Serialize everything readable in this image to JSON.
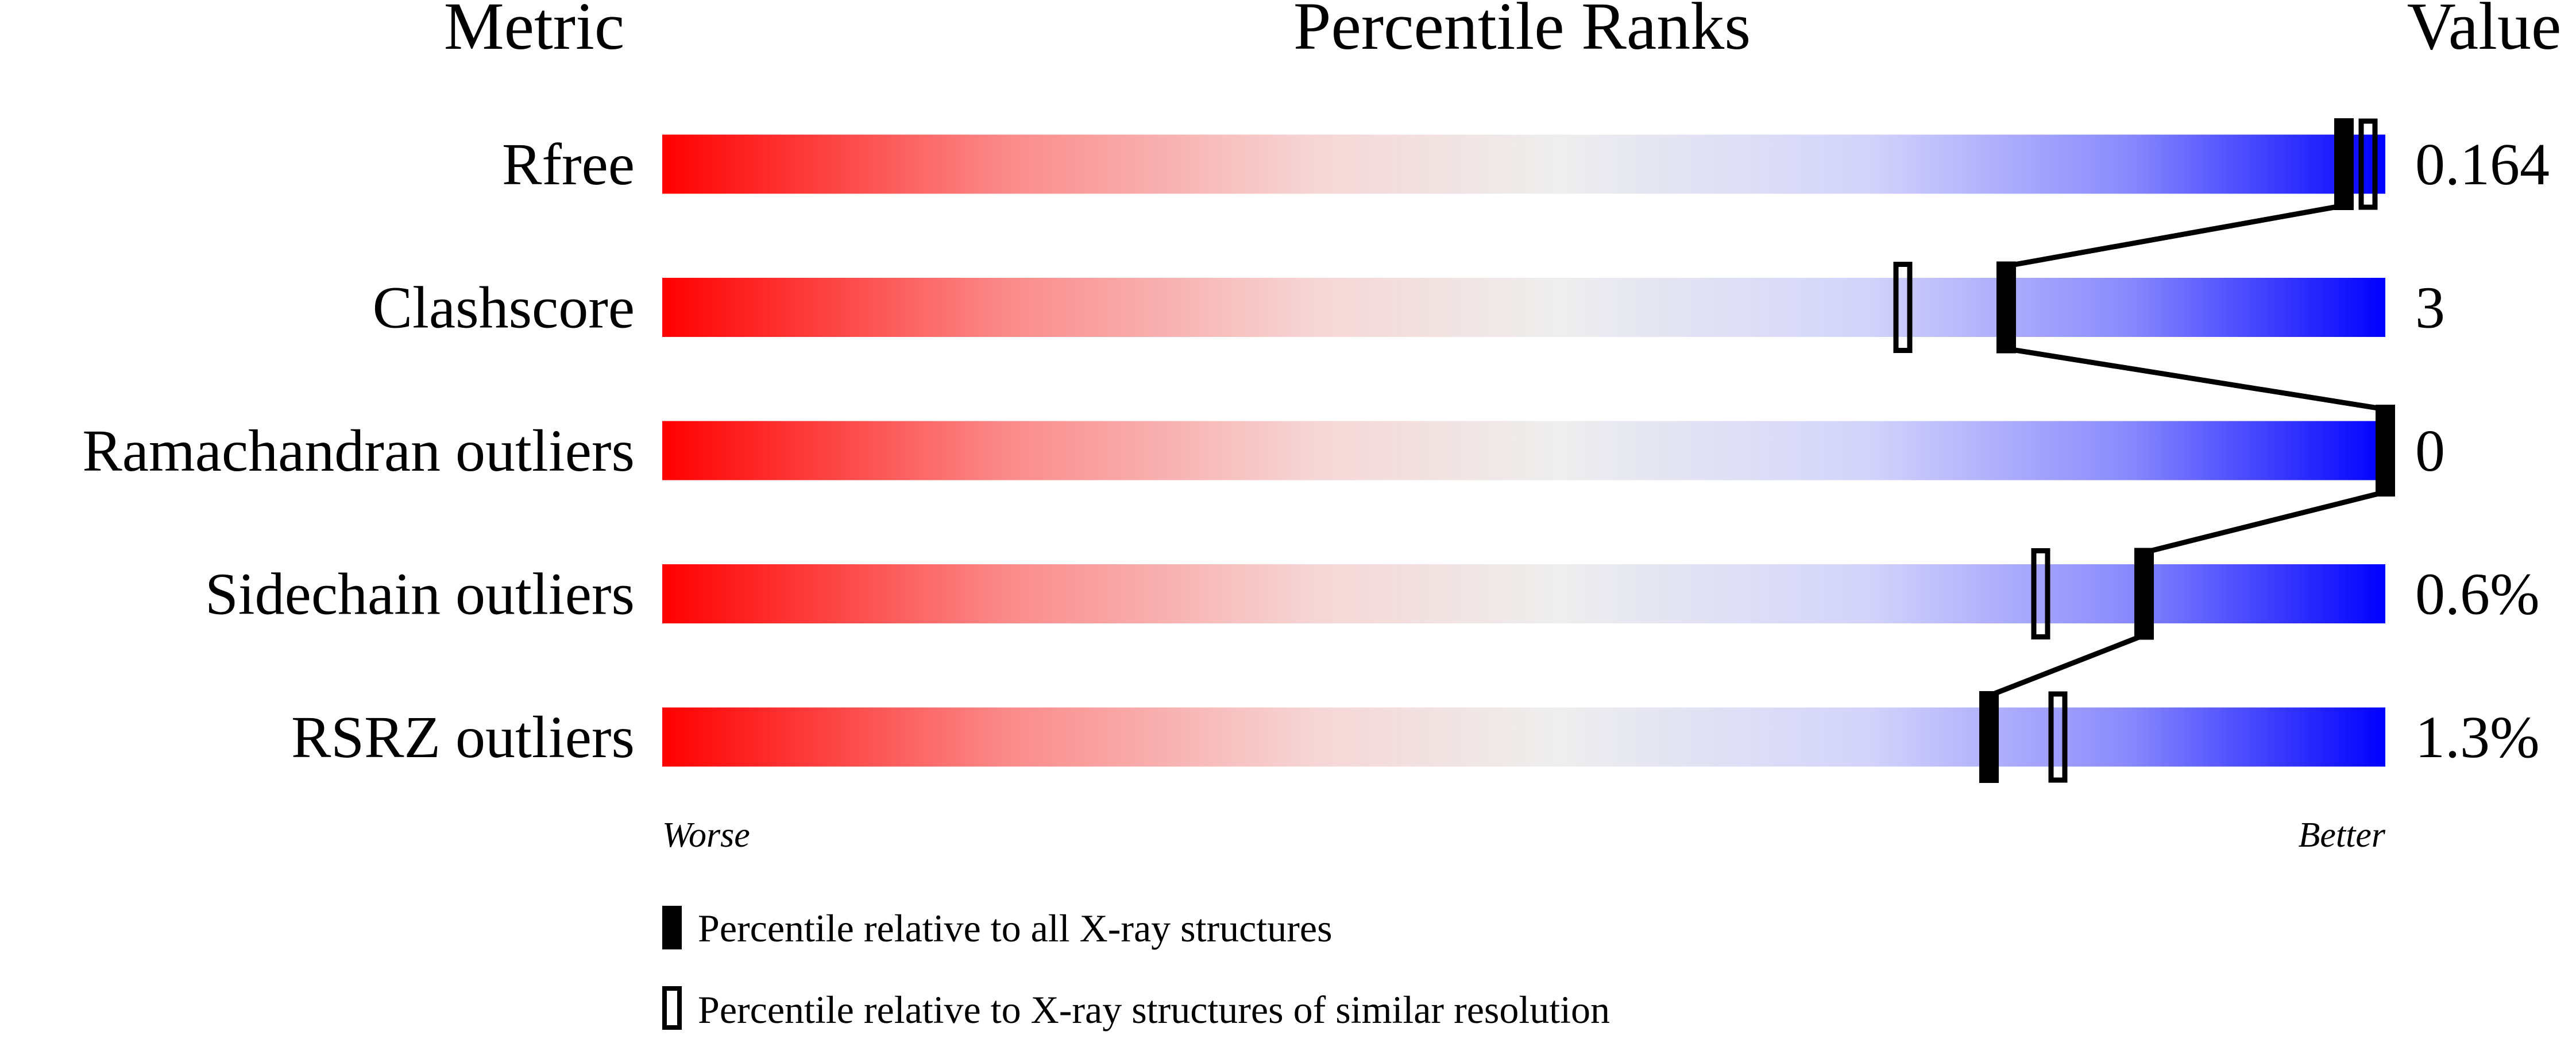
{
  "chart_data": {
    "type": "bar",
    "headers": {
      "metric": "Metric",
      "ranks": "Percentile Ranks",
      "value": "Value"
    },
    "metrics": [
      {
        "name": "Rfree",
        "value": "0.164",
        "percentile_all": 98,
        "percentile_similar": 99
      },
      {
        "name": "Clashscore",
        "value": "3",
        "percentile_all": 78,
        "percentile_similar": 72
      },
      {
        "name": "Ramachandran outliers",
        "value": "0",
        "percentile_all": 100,
        "percentile_similar": null
      },
      {
        "name": "Sidechain outliers",
        "value": "0.6%",
        "percentile_all": 86,
        "percentile_similar": 80
      },
      {
        "name": "RSRZ outliers",
        "value": "1.3%",
        "percentile_all": 77,
        "percentile_similar": 81
      }
    ],
    "xlim": [
      0,
      100
    ],
    "axis_labels": {
      "left": "Worse",
      "right": "Better"
    },
    "legend": {
      "filled": "Percentile relative to all X-ray structures",
      "open": "Percentile relative to X-ray structures of similar resolution"
    },
    "colors": {
      "worse": "#ff0000",
      "middle": "#eeeeee",
      "better": "#0000ff",
      "marker": "#000000"
    }
  }
}
